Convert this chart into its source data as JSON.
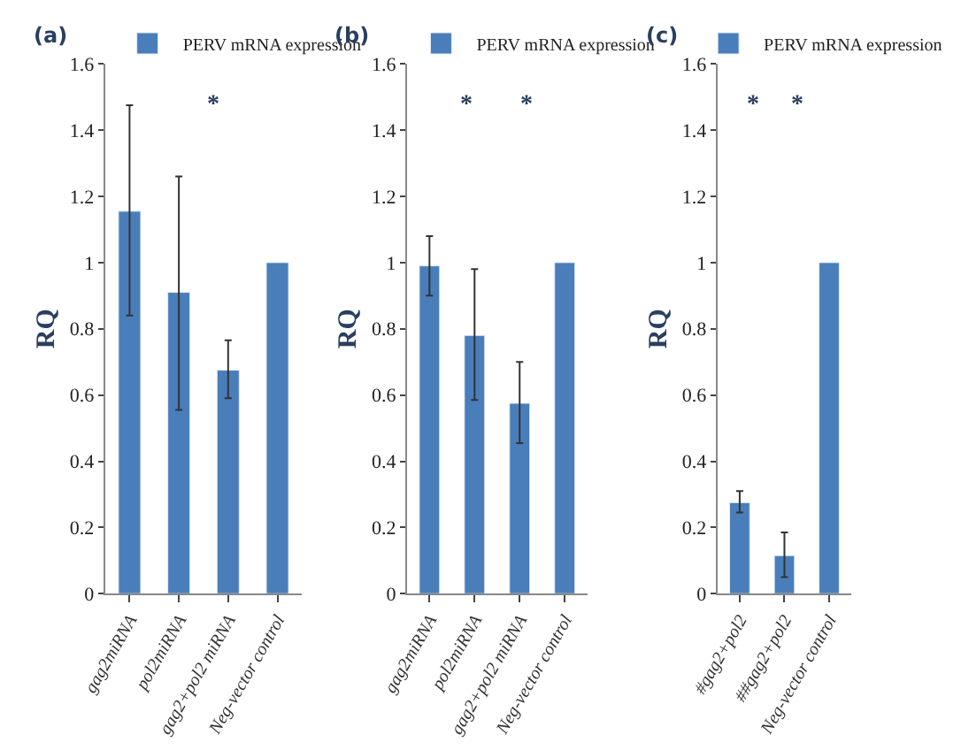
{
  "chart_data": [
    {
      "type": "bar",
      "title": "(a)",
      "ylabel": "RQ",
      "categories": [
        "gag2miRNA",
        "pol2miRNA",
        "gag2+pol2 miRNA",
        "Neg-vector control"
      ],
      "series": [
        {
          "name": "PERV mRNA expression",
          "color": "#4a7ebb",
          "values": [
            1.155,
            0.91,
            0.675,
            1.0
          ],
          "errors": [
            [
              0.84,
              1.475
            ],
            [
              0.555,
              1.26
            ],
            [
              0.59,
              0.765
            ],
            null
          ]
        }
      ],
      "ylim": [
        0,
        1.6
      ],
      "yticks": [
        0,
        0.2,
        0.4,
        0.6,
        0.8,
        1,
        1.2,
        1.4,
        1.6
      ],
      "legend": "top",
      "annotations": [
        "*"
      ]
    },
    {
      "type": "bar",
      "title": "(b)",
      "ylabel": "RQ",
      "categories": [
        "gag2miRNA",
        "pol2miRNA",
        "gag2+pol2 miRNA",
        "Neg-vector control"
      ],
      "series": [
        {
          "name": "PERV mRNA expression",
          "color": "#4a7ebb",
          "values": [
            0.99,
            0.78,
            0.575,
            1.0
          ],
          "errors": [
            [
              0.9,
              1.08
            ],
            [
              0.585,
              0.98
            ],
            [
              0.455,
              0.7
            ],
            null
          ]
        }
      ],
      "ylim": [
        0,
        1.6
      ],
      "yticks": [
        0,
        0.2,
        0.4,
        0.6,
        0.8,
        1,
        1.2,
        1.4,
        1.6
      ],
      "legend": "top",
      "annotations": [
        "*",
        "*"
      ]
    },
    {
      "type": "bar",
      "title": "(c)",
      "ylabel": "RQ",
      "categories": [
        "#gag2+pol2",
        "##gag2+pol2",
        "Neg-vector control"
      ],
      "series": [
        {
          "name": "PERV mRNA expression",
          "color": "#4a7ebb",
          "values": [
            0.275,
            0.115,
            1.0
          ],
          "errors": [
            [
              0.245,
              0.31
            ],
            [
              0.05,
              0.185
            ],
            null
          ]
        }
      ],
      "ylim": [
        0,
        1.6
      ],
      "yticks": [
        0,
        0.2,
        0.4,
        0.6,
        0.8,
        1,
        1.2,
        1.4,
        1.6
      ],
      "legend": "top",
      "annotations": [
        "*",
        "*"
      ]
    }
  ]
}
